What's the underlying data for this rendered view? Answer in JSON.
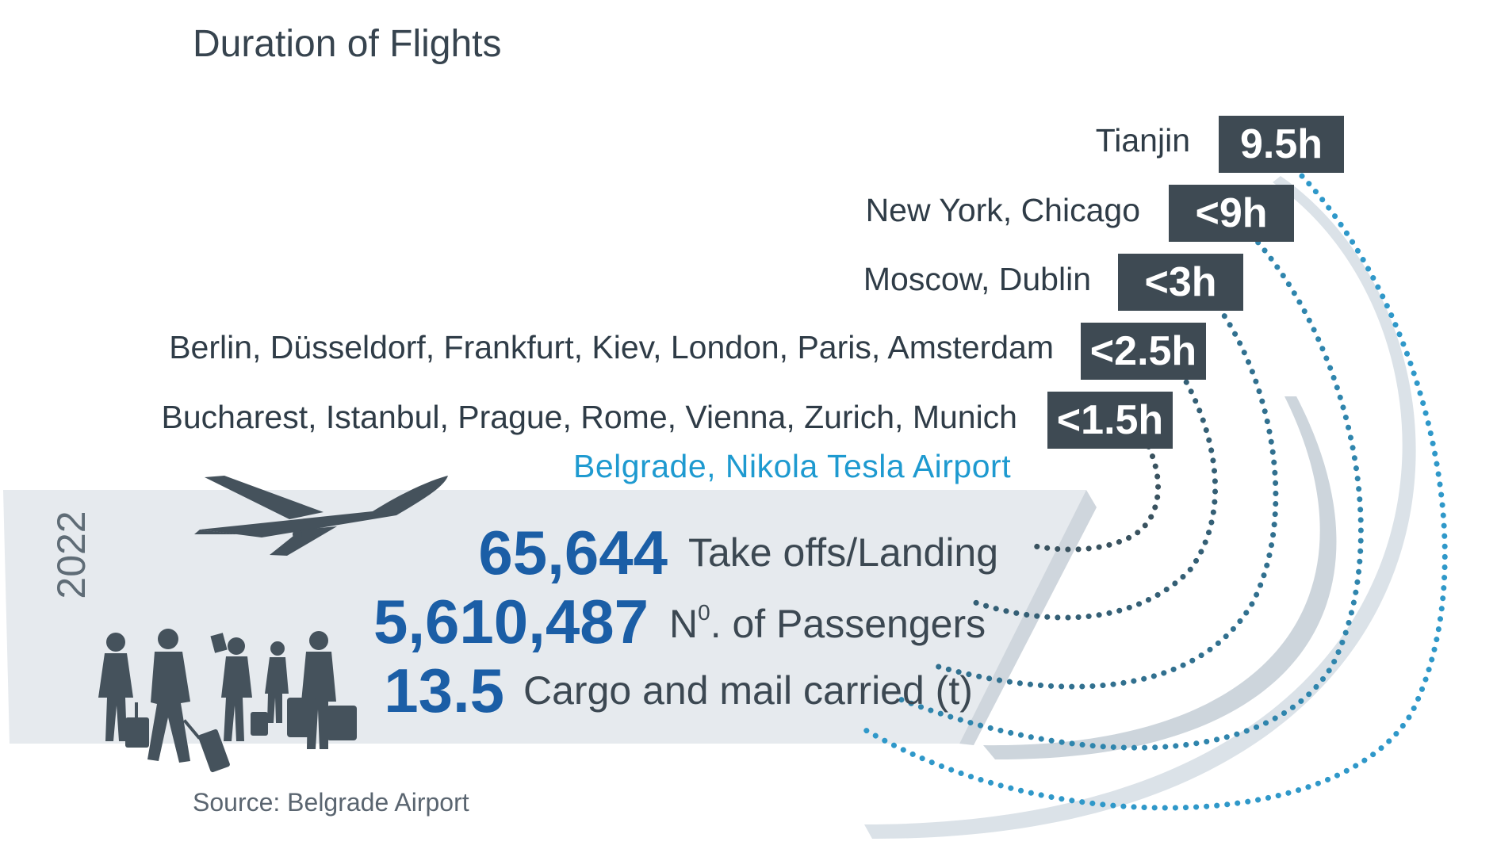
{
  "title": "Duration of Flights",
  "routes": [
    {
      "destinations": "Tianjin",
      "duration": "9.5h"
    },
    {
      "destinations": "New York, Chicago",
      "duration": "<9h"
    },
    {
      "destinations": "Moscow, Dublin",
      "duration": "<3h"
    },
    {
      "destinations": "Berlin, Düsseldorf, Frankfurt, Kiev, London, Paris, Amsterdam",
      "duration": "<2.5h"
    },
    {
      "destinations": "Bucharest, Istanbul, Prague, Rome, Vienna, Zurich, Munich",
      "duration": "<1.5h"
    }
  ],
  "origin": "Belgrade, Nikola Tesla Airport",
  "year": "2022",
  "stats": [
    {
      "value": "65,644",
      "label": "Take offs/Landing"
    },
    {
      "value": "5,610,487",
      "label_main": "N",
      "label_sup": "0",
      "label_rest": ". of Passengers"
    },
    {
      "value": "13.5",
      "label": "Cargo and mail carried (t)"
    }
  ],
  "source": "Source:  Belgrade Airport",
  "colors": {
    "badge": "#3e4a53",
    "number": "#1b5ea6",
    "origin": "#1e9ad0",
    "panel": "#e6eaee",
    "silhouette": "#45525c"
  },
  "icons": [
    "airplane-icon",
    "travelers-icon"
  ]
}
